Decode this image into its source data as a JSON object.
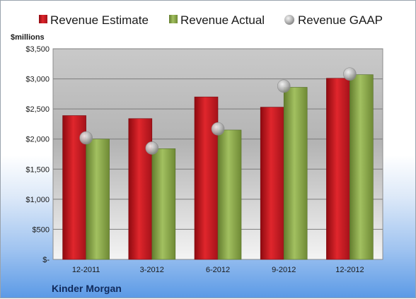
{
  "chart_data": {
    "type": "bar",
    "title": "",
    "ylabel": "$millions",
    "footer": "Kinder Morgan",
    "categories": [
      "12-2011",
      "3-2012",
      "6-2012",
      "9-2012",
      "12-2012"
    ],
    "series": [
      {
        "name": "Revenue Estimate",
        "type": "bar",
        "color": "#c0141c",
        "values": [
          2390,
          2340,
          2700,
          2530,
          3010
        ]
      },
      {
        "name": "Revenue Actual",
        "type": "bar",
        "color": "#8aa84a",
        "values": [
          2000,
          1840,
          2150,
          2860,
          3070
        ]
      },
      {
        "name": "Revenue GAAP",
        "type": "scatter",
        "color": "#b8b8b8",
        "values": [
          2020,
          1850,
          2170,
          2880,
          3080
        ]
      }
    ],
    "ylim": [
      0,
      3500
    ],
    "yticks": [
      0,
      500,
      1000,
      1500,
      2000,
      2500,
      3000,
      3500
    ],
    "ytick_labels": [
      "$-",
      "$500",
      "$1,000",
      "$1,500",
      "$2,000",
      "$2,500",
      "$3,000",
      "$3,500"
    ],
    "grid": true,
    "legend_position": "top"
  }
}
